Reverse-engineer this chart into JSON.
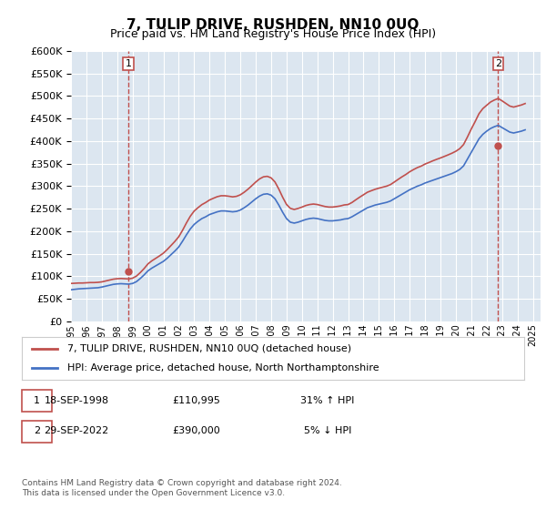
{
  "title": "7, TULIP DRIVE, RUSHDEN, NN10 0UQ",
  "subtitle": "Price paid vs. HM Land Registry's House Price Index (HPI)",
  "background_color": "#dce6f0",
  "plot_bg_color": "#dce6f0",
  "legend_label_red": "7, TULIP DRIVE, RUSHDEN, NN10 0UQ (detached house)",
  "legend_label_blue": "HPI: Average price, detached house, North Northamptonshire",
  "footer": "Contains HM Land Registry data © Crown copyright and database right 2024.\nThis data is licensed under the Open Government Licence v3.0.",
  "annotation1_date": "18-SEP-1998",
  "annotation1_price": "£110,995",
  "annotation1_hpi": "31% ↑ HPI",
  "annotation2_date": "29-SEP-2022",
  "annotation2_price": "£390,000",
  "annotation2_hpi": "5% ↓ HPI",
  "sale1_x": 1998.72,
  "sale1_y": 110995,
  "sale2_x": 2022.75,
  "sale2_y": 390000,
  "ylim_min": 0,
  "ylim_max": 600000,
  "xlim_min": 1995.0,
  "xlim_max": 2025.5,
  "hpi_x": [
    1995,
    1995.25,
    1995.5,
    1995.75,
    1996,
    1996.25,
    1996.5,
    1996.75,
    1997,
    1997.25,
    1997.5,
    1997.75,
    1998,
    1998.25,
    1998.5,
    1998.75,
    1999,
    1999.25,
    1999.5,
    1999.75,
    2000,
    2000.25,
    2000.5,
    2000.75,
    2001,
    2001.25,
    2001.5,
    2001.75,
    2002,
    2002.25,
    2002.5,
    2002.75,
    2003,
    2003.25,
    2003.5,
    2003.75,
    2004,
    2004.25,
    2004.5,
    2004.75,
    2005,
    2005.25,
    2005.5,
    2005.75,
    2006,
    2006.25,
    2006.5,
    2006.75,
    2007,
    2007.25,
    2007.5,
    2007.75,
    2008,
    2008.25,
    2008.5,
    2008.75,
    2009,
    2009.25,
    2009.5,
    2009.75,
    2010,
    2010.25,
    2010.5,
    2010.75,
    2011,
    2011.25,
    2011.5,
    2011.75,
    2012,
    2012.25,
    2012.5,
    2012.75,
    2013,
    2013.25,
    2013.5,
    2013.75,
    2014,
    2014.25,
    2014.5,
    2014.75,
    2015,
    2015.25,
    2015.5,
    2015.75,
    2016,
    2016.25,
    2016.5,
    2016.75,
    2017,
    2017.25,
    2017.5,
    2017.75,
    2018,
    2018.25,
    2018.5,
    2018.75,
    2019,
    2019.25,
    2019.5,
    2019.75,
    2020,
    2020.25,
    2020.5,
    2020.75,
    2021,
    2021.25,
    2021.5,
    2021.75,
    2022,
    2022.25,
    2022.5,
    2022.75,
    2023,
    2023.25,
    2023.5,
    2023.75,
    2024,
    2024.25,
    2024.5
  ],
  "hpi_y": [
    70000,
    71000,
    72000,
    72500,
    73000,
    73500,
    74000,
    74500,
    76000,
    78000,
    80000,
    82000,
    83000,
    83500,
    83000,
    82500,
    84000,
    88000,
    95000,
    103000,
    112000,
    118000,
    123000,
    128000,
    133000,
    140000,
    148000,
    156000,
    165000,
    178000,
    192000,
    205000,
    215000,
    222000,
    228000,
    232000,
    237000,
    240000,
    243000,
    245000,
    245000,
    244000,
    243000,
    244000,
    247000,
    252000,
    258000,
    265000,
    272000,
    278000,
    282000,
    283000,
    280000,
    272000,
    258000,
    242000,
    228000,
    220000,
    218000,
    220000,
    223000,
    226000,
    228000,
    229000,
    228000,
    226000,
    224000,
    223000,
    223000,
    224000,
    225000,
    227000,
    228000,
    232000,
    237000,
    242000,
    247000,
    252000,
    255000,
    258000,
    260000,
    262000,
    264000,
    267000,
    272000,
    277000,
    282000,
    287000,
    292000,
    296000,
    300000,
    303000,
    307000,
    310000,
    313000,
    316000,
    319000,
    322000,
    325000,
    328000,
    332000,
    337000,
    345000,
    360000,
    375000,
    390000,
    405000,
    415000,
    422000,
    428000,
    432000,
    435000,
    430000,
    425000,
    420000,
    418000,
    420000,
    422000,
    425000
  ],
  "hpi_red_x": [
    1995,
    1995.25,
    1995.5,
    1995.75,
    1996,
    1996.25,
    1996.5,
    1996.75,
    1997,
    1997.25,
    1997.5,
    1997.75,
    1998,
    1998.25,
    1998.5,
    1998.75,
    1999,
    1999.25,
    1999.5,
    1999.75,
    2000,
    2000.25,
    2000.5,
    2000.75,
    2001,
    2001.25,
    2001.5,
    2001.75,
    2002,
    2002.25,
    2002.5,
    2002.75,
    2003,
    2003.25,
    2003.5,
    2003.75,
    2004,
    2004.25,
    2004.5,
    2004.75,
    2005,
    2005.25,
    2005.5,
    2005.75,
    2006,
    2006.25,
    2006.5,
    2006.75,
    2007,
    2007.25,
    2007.5,
    2007.75,
    2008,
    2008.25,
    2008.5,
    2008.75,
    2009,
    2009.25,
    2009.5,
    2009.75,
    2010,
    2010.25,
    2010.5,
    2010.75,
    2011,
    2011.25,
    2011.5,
    2011.75,
    2012,
    2012.25,
    2012.5,
    2012.75,
    2013,
    2013.25,
    2013.5,
    2013.75,
    2014,
    2014.25,
    2014.5,
    2014.75,
    2015,
    2015.25,
    2015.5,
    2015.75,
    2016,
    2016.25,
    2016.5,
    2016.75,
    2017,
    2017.25,
    2017.5,
    2017.75,
    2018,
    2018.25,
    2018.5,
    2018.75,
    2019,
    2019.25,
    2019.5,
    2019.75,
    2020,
    2020.25,
    2020.5,
    2020.75,
    2021,
    2021.25,
    2021.5,
    2021.75,
    2022,
    2022.25,
    2022.5,
    2022.75,
    2023,
    2023.25,
    2023.5,
    2023.75,
    2024,
    2024.25,
    2024.5
  ],
  "hpi_red_y": [
    84000,
    84500,
    85000,
    85000,
    85500,
    86000,
    86000,
    86500,
    87500,
    89500,
    91500,
    93500,
    94500,
    95000,
    94500,
    94000,
    95700,
    100300,
    108100,
    117100,
    127400,
    134200,
    139700,
    145200,
    151200,
    159300,
    168300,
    177400,
    187700,
    202200,
    218400,
    233200,
    244700,
    252200,
    259000,
    263700,
    269300,
    273100,
    276600,
    278700,
    278700,
    277600,
    276200,
    277400,
    280800,
    286500,
    293300,
    301100,
    309100,
    316100,
    320700,
    321800,
    318400,
    309300,
    293500,
    275400,
    259400,
    250700,
    248200,
    250500,
    253500,
    257000,
    259200,
    260300,
    259200,
    257000,
    254800,
    253600,
    253600,
    254700,
    256100,
    258300,
    259200,
    263700,
    269700,
    275500,
    280900,
    286400,
    289800,
    293000,
    295500,
    297800,
    300000,
    303400,
    309100,
    315000,
    320700,
    325900,
    331900,
    336800,
    341200,
    344500,
    349100,
    352500,
    356200,
    359500,
    362600,
    366000,
    369500,
    373200,
    377500,
    383200,
    392400,
    409000,
    426800,
    443200,
    460700,
    472100,
    479500,
    486700,
    491200,
    494600,
    489400,
    483600,
    477800,
    475500,
    477800,
    480100,
    483400
  ],
  "xticks": [
    1995,
    1996,
    1997,
    1998,
    1999,
    2000,
    2001,
    2002,
    2003,
    2004,
    2005,
    2006,
    2007,
    2008,
    2009,
    2010,
    2011,
    2012,
    2013,
    2014,
    2015,
    2016,
    2017,
    2018,
    2019,
    2020,
    2021,
    2022,
    2023,
    2024,
    2025
  ],
  "yticks": [
    0,
    50000,
    100000,
    150000,
    200000,
    250000,
    300000,
    350000,
    400000,
    450000,
    500000,
    550000,
    600000
  ]
}
